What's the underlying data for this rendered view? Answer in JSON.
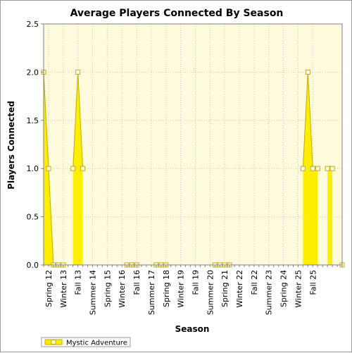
{
  "chart_data": {
    "type": "area",
    "title": "Average Players Connected By Season",
    "xlabel": "Season",
    "ylabel": "Players Connected",
    "ylim": [
      0,
      2.5
    ],
    "yticks": [
      "0.0",
      "0.5",
      "1.0",
      "1.5",
      "2.0",
      "2.5"
    ],
    "grid": true,
    "legend_position": "bottom-left",
    "x_tick_labels": [
      "Spring 12",
      "Winter 13",
      "Fall 13",
      "Summer 14",
      "Spring 15",
      "Winter 16",
      "Fall 16",
      "Summer 17",
      "Spring 18",
      "Winter 19",
      "Fall 19",
      "Summer 20",
      "Spring 21",
      "Winter 22",
      "Fall 22",
      "Summer 23",
      "Spring 24",
      "Winter 25",
      "Fall 25"
    ],
    "series": [
      {
        "name": "Mystic Adventure",
        "color": "#ffee00",
        "edge_color": "#c8a800",
        "values": [
          2,
          1,
          0,
          0,
          0,
          null,
          1,
          2,
          1,
          null,
          null,
          null,
          null,
          null,
          null,
          null,
          null,
          0,
          0,
          0,
          null,
          null,
          null,
          0,
          0,
          0,
          null,
          null,
          null,
          null,
          null,
          null,
          null,
          null,
          null,
          0,
          0,
          0,
          0,
          null,
          null,
          null,
          null,
          null,
          null,
          null,
          null,
          null,
          null,
          null,
          null,
          null,
          null,
          1,
          2,
          1,
          1,
          null,
          1,
          1,
          null,
          0
        ],
        "marked_indices": [
          0,
          1,
          2,
          3,
          4,
          6,
          7,
          8,
          17,
          18,
          19,
          23,
          24,
          25,
          35,
          36,
          37,
          38,
          53,
          54,
          55,
          56,
          58,
          59,
          61
        ]
      }
    ]
  },
  "colors": {
    "plot_background": "#fffbdc",
    "grid": "#c8c8c8",
    "fill": "#ffee00",
    "edge": "#c8a800"
  }
}
